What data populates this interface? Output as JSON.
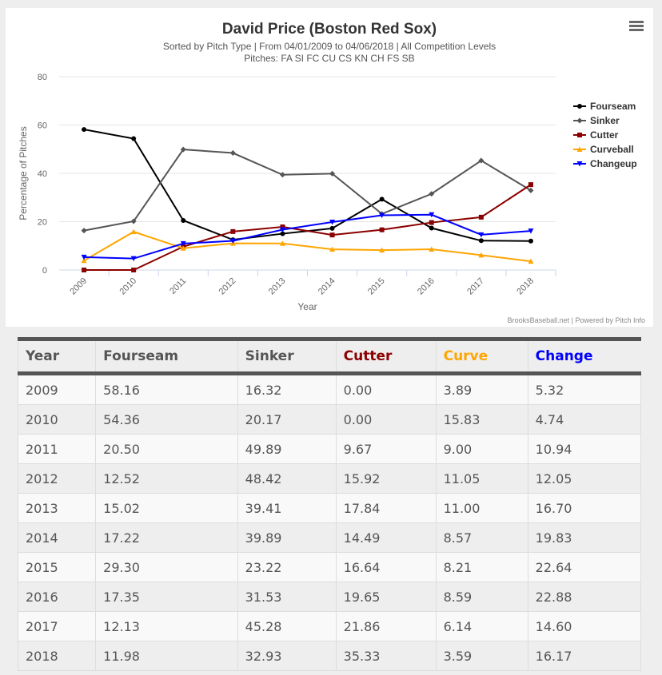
{
  "chart_data": {
    "type": "line",
    "title": "David Price (Boston Red Sox)",
    "subtitle": "Sorted by Pitch Type | From 04/01/2009 to 04/06/2018 | All Competition Levels",
    "subtitle2": "Pitches: FA SI FC CU CS KN CH FS SB",
    "xlabel": "Year",
    "ylabel": "Percentage of Pitches",
    "ylim": [
      0,
      80
    ],
    "yticks": [
      "0",
      "20",
      "40",
      "60",
      "80"
    ],
    "x": [
      "2009",
      "2010",
      "2011",
      "2012",
      "2013",
      "2014",
      "2015",
      "2016",
      "2017",
      "2018"
    ],
    "legend_position": "right",
    "series": [
      {
        "name": "Fourseam",
        "color": "#000000",
        "marker": "circle",
        "values": [
          58.16,
          54.36,
          20.5,
          12.52,
          15.02,
          17.22,
          29.3,
          17.35,
          12.13,
          11.98
        ]
      },
      {
        "name": "Sinker",
        "color": "#555555",
        "marker": "diamond",
        "values": [
          16.32,
          20.17,
          49.89,
          48.42,
          39.41,
          39.89,
          23.22,
          31.53,
          45.28,
          32.93
        ]
      },
      {
        "name": "Cutter",
        "color": "#8b0000",
        "marker": "square",
        "values": [
          0.0,
          0.0,
          9.67,
          15.92,
          17.84,
          14.49,
          16.64,
          19.65,
          21.86,
          35.33
        ]
      },
      {
        "name": "Curveball",
        "color": "#ffa500",
        "marker": "triangle",
        "values": [
          3.89,
          15.83,
          9.0,
          11.05,
          11.0,
          8.57,
          8.21,
          8.59,
          6.14,
          3.59
        ]
      },
      {
        "name": "Changeup",
        "color": "#0000ff",
        "marker": "triangle-down",
        "values": [
          5.32,
          4.74,
          10.94,
          12.05,
          16.7,
          19.83,
          22.64,
          22.88,
          14.6,
          16.17
        ]
      }
    ],
    "credit": "BrooksBaseball.net | Powered by Pitch Info"
  },
  "table": {
    "headers": [
      {
        "label": "Year",
        "color": "#555555"
      },
      {
        "label": "Fourseam",
        "color": "#555555"
      },
      {
        "label": "Sinker",
        "color": "#555555"
      },
      {
        "label": "Cutter",
        "color": "#8b0000"
      },
      {
        "label": "Curve",
        "color": "#ffa500"
      },
      {
        "label": "Change",
        "color": "#0000ff"
      }
    ],
    "rows": [
      [
        "2009",
        "58.16",
        "16.32",
        "0.00",
        "3.89",
        "5.32"
      ],
      [
        "2010",
        "54.36",
        "20.17",
        "0.00",
        "15.83",
        "4.74"
      ],
      [
        "2011",
        "20.50",
        "49.89",
        "9.67",
        "9.00",
        "10.94"
      ],
      [
        "2012",
        "12.52",
        "48.42",
        "15.92",
        "11.05",
        "12.05"
      ],
      [
        "2013",
        "15.02",
        "39.41",
        "17.84",
        "11.00",
        "16.70"
      ],
      [
        "2014",
        "17.22",
        "39.89",
        "14.49",
        "8.57",
        "19.83"
      ],
      [
        "2015",
        "29.30",
        "23.22",
        "16.64",
        "8.21",
        "22.64"
      ],
      [
        "2016",
        "17.35",
        "31.53",
        "19.65",
        "8.59",
        "22.88"
      ],
      [
        "2017",
        "12.13",
        "45.28",
        "21.86",
        "6.14",
        "14.60"
      ],
      [
        "2018",
        "11.98",
        "32.93",
        "35.33",
        "3.59",
        "16.17"
      ]
    ]
  }
}
